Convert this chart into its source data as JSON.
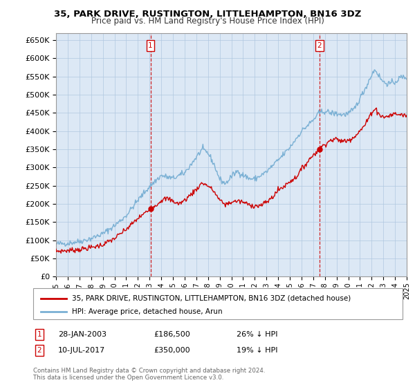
{
  "title": "35, PARK DRIVE, RUSTINGTON, LITTLEHAMPTON, BN16 3DZ",
  "subtitle": "Price paid vs. HM Land Registry's House Price Index (HPI)",
  "ylabel_ticks": [
    0,
    50000,
    100000,
    150000,
    200000,
    250000,
    300000,
    350000,
    400000,
    450000,
    500000,
    550000,
    600000,
    650000
  ],
  "xlim_years": [
    1995,
    2025
  ],
  "ylim": [
    0,
    670000
  ],
  "sale1_date_num": 2003.08,
  "sale1_price": 186500,
  "sale1_label": "1",
  "sale2_date_num": 2017.53,
  "sale2_price": 350000,
  "sale2_label": "2",
  "legend_red": "35, PARK DRIVE, RUSTINGTON, LITTLEHAMPTON, BN16 3DZ (detached house)",
  "legend_blue": "HPI: Average price, detached house, Arun",
  "footer": "Contains HM Land Registry data © Crown copyright and database right 2024.\nThis data is licensed under the Open Government Licence v3.0.",
  "red_color": "#cc0000",
  "blue_color": "#7ab0d4",
  "bg_color": "#ffffff",
  "plot_bg_color": "#dce8f5",
  "grid_color": "#b0c8e0"
}
